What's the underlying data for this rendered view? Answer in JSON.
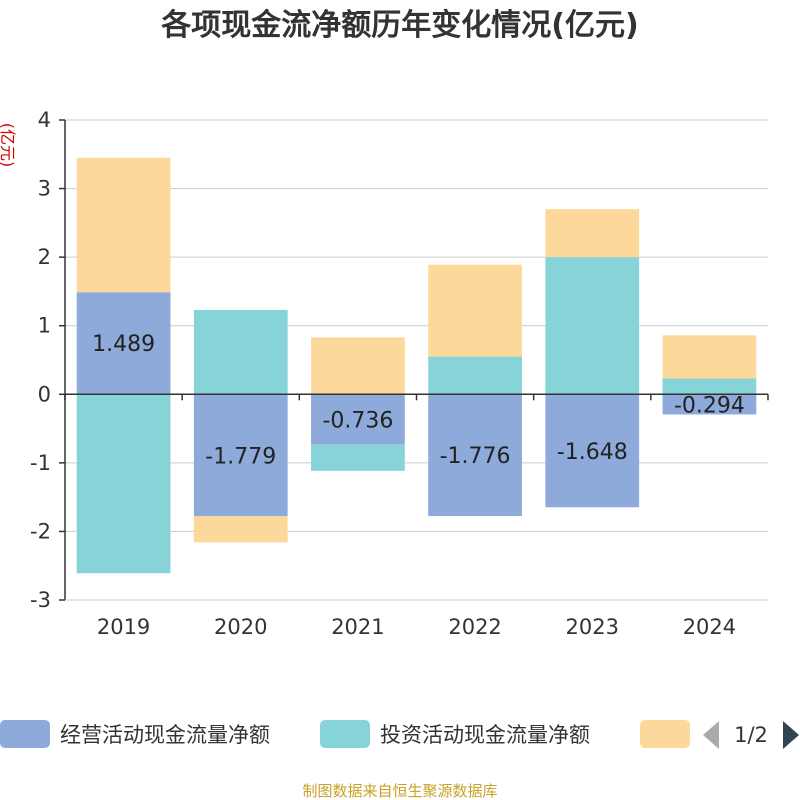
{
  "chart_data": {
    "type": "bar",
    "stacked": true,
    "title": "各项现金流净额历年变化情况(亿元)",
    "ylabel": "(亿元)",
    "categories": [
      "2019",
      "2020",
      "2021",
      "2022",
      "2023",
      "2024"
    ],
    "ylim": [
      -3,
      4
    ],
    "yticks": [
      4,
      3,
      2,
      1,
      0,
      -1,
      -2,
      -3
    ],
    "grid": true,
    "series": [
      {
        "name": "经营活动现金流量净额",
        "color": "#8eaadb",
        "values": [
          1.489,
          -1.779,
          -0.736,
          -1.776,
          -1.648,
          -0.294
        ],
        "show_labels": true
      },
      {
        "name": "投资活动现金流量净额",
        "color": "#86d4d8",
        "values": [
          -2.61,
          1.23,
          -0.38,
          0.55,
          2.0,
          0.23
        ],
        "show_labels": false
      },
      {
        "name": "",
        "color": "#fdd89b",
        "values": [
          1.96,
          -0.38,
          0.83,
          1.34,
          0.7,
          0.63
        ],
        "show_labels": false
      }
    ],
    "legend": {
      "position": "bottom",
      "page": "1/2"
    },
    "source": "制图数据来自恒生聚源数据库"
  }
}
